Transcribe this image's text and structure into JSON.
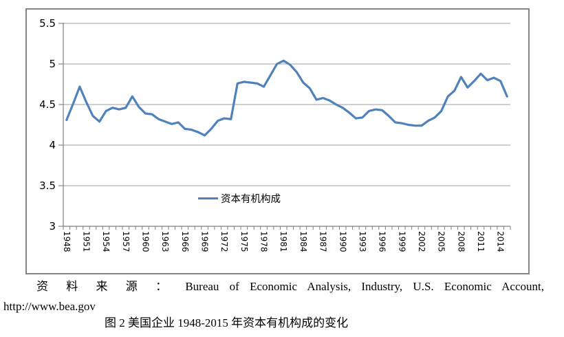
{
  "figure": {
    "source_label": "资 料 来 源 ： Bureau of Economic Analysis, Industry, U.S. Economic Account,",
    "source_url": "http://www.bea.gov",
    "caption": "图 2 美国企业 1948-2015 年资本有机构成的变化"
  },
  "chart_data": {
    "type": "line",
    "title": "",
    "xlabel": "",
    "ylabel": "",
    "ylim": [
      3,
      5.5
    ],
    "y_ticks": [
      3,
      3.5,
      4,
      4.5,
      5,
      5.5
    ],
    "x_tick_labels": [
      "1948",
      "1951",
      "1954",
      "1957",
      "1960",
      "1963",
      "1966",
      "1969",
      "1972",
      "1975",
      "1978",
      "1981",
      "1984",
      "1987",
      "1990",
      "1993",
      "1996",
      "1999",
      "2002",
      "2005",
      "2008",
      "2011",
      "2014"
    ],
    "x_tick_interval": 3,
    "grid": true,
    "legend_position": "inside-bottom-center",
    "line_color": "#4F81BD",
    "grid_color": "#9d9d9d",
    "axis_color": "#7f7f7f",
    "frame_color": "#848484",
    "series": [
      {
        "name": "资本有机构成",
        "years": [
          1948,
          1949,
          1950,
          1951,
          1952,
          1953,
          1954,
          1955,
          1956,
          1957,
          1958,
          1959,
          1960,
          1961,
          1962,
          1963,
          1964,
          1965,
          1966,
          1967,
          1968,
          1969,
          1970,
          1971,
          1972,
          1973,
          1974,
          1975,
          1976,
          1977,
          1978,
          1979,
          1980,
          1981,
          1982,
          1983,
          1984,
          1985,
          1986,
          1987,
          1988,
          1989,
          1990,
          1991,
          1992,
          1993,
          1994,
          1995,
          1996,
          1997,
          1998,
          1999,
          2000,
          2001,
          2002,
          2003,
          2004,
          2005,
          2006,
          2007,
          2008,
          2009,
          2010,
          2011,
          2012,
          2013,
          2014,
          2015
        ],
        "values": [
          4.31,
          4.51,
          4.72,
          4.53,
          4.36,
          4.29,
          4.42,
          4.46,
          4.44,
          4.46,
          4.6,
          4.47,
          4.39,
          4.38,
          4.32,
          4.29,
          4.26,
          4.28,
          4.2,
          4.19,
          4.16,
          4.12,
          4.2,
          4.3,
          4.33,
          4.32,
          4.76,
          4.78,
          4.77,
          4.76,
          4.72,
          4.86,
          5.0,
          5.04,
          4.99,
          4.9,
          4.77,
          4.7,
          4.56,
          4.58,
          4.55,
          4.5,
          4.46,
          4.4,
          4.33,
          4.34,
          4.42,
          4.44,
          4.43,
          4.36,
          4.28,
          4.27,
          4.25,
          4.24,
          4.24,
          4.3,
          4.34,
          4.42,
          4.6,
          4.67,
          4.84,
          4.71,
          4.79,
          4.88,
          4.8,
          4.83,
          4.79,
          4.6
        ]
      }
    ]
  }
}
